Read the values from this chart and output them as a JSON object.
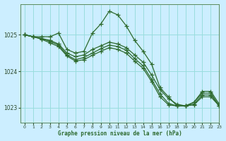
{
  "background_color": "#cceeff",
  "grid_color": "#99dddd",
  "line_color": "#2d6a2d",
  "title": "Graphe pression niveau de la mer (hPa)",
  "xlim": [
    -0.5,
    23
  ],
  "ylim": [
    1022.6,
    1025.85
  ],
  "yticks": [
    1023,
    1024,
    1025
  ],
  "xticks": [
    0,
    1,
    2,
    3,
    4,
    5,
    6,
    7,
    8,
    9,
    10,
    11,
    12,
    13,
    14,
    15,
    16,
    17,
    18,
    19,
    20,
    21,
    22,
    23
  ],
  "series": [
    [
      1025.0,
      1024.95,
      1024.95,
      1024.95,
      1025.05,
      1024.6,
      1024.5,
      1024.55,
      1025.05,
      1025.3,
      1025.65,
      1025.55,
      1025.25,
      1024.85,
      1024.55,
      1024.2,
      1023.55,
      1023.3,
      1023.05,
      1023.05,
      1023.15,
      1023.45,
      1023.45,
      1023.1
    ],
    [
      1025.0,
      1024.95,
      1024.9,
      1024.85,
      1024.75,
      1024.5,
      1024.4,
      1024.45,
      1024.6,
      1024.7,
      1024.8,
      1024.75,
      1024.65,
      1024.45,
      1024.25,
      1023.9,
      1023.5,
      1023.25,
      1023.1,
      1023.05,
      1023.15,
      1023.4,
      1023.4,
      1023.05
    ],
    [
      1025.0,
      1024.95,
      1024.9,
      1024.82,
      1024.72,
      1024.45,
      1024.32,
      1024.38,
      1024.5,
      1024.62,
      1024.72,
      1024.68,
      1024.58,
      1024.35,
      1024.15,
      1023.78,
      1023.38,
      1023.12,
      1023.05,
      1023.05,
      1023.1,
      1023.35,
      1023.35,
      1023.05
    ],
    [
      1025.0,
      1024.95,
      1024.88,
      1024.78,
      1024.68,
      1024.42,
      1024.28,
      1024.32,
      1024.44,
      1024.55,
      1024.65,
      1024.6,
      1024.5,
      1024.28,
      1024.08,
      1023.72,
      1023.3,
      1023.08,
      1023.05,
      1023.05,
      1023.08,
      1023.3,
      1023.3,
      1023.05
    ]
  ]
}
